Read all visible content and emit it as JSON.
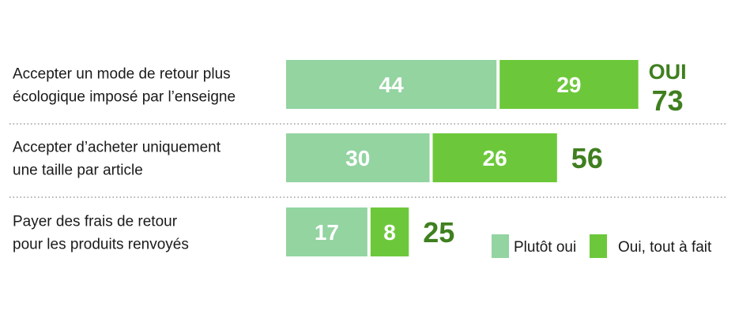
{
  "chart_data": {
    "type": "bar",
    "orientation": "horizontal",
    "stacked": true,
    "categories": [
      [
        "Accepter un mode de retour plus",
        "écologique imposé par l’enseigne"
      ],
      [
        "Accepter d’acheter uniquement",
        "une taille par article"
      ],
      [
        "Payer des frais de retour",
        "pour les produits renvoyés"
      ]
    ],
    "series": [
      {
        "name": "Plutôt oui",
        "values": [
          44,
          30,
          17
        ],
        "color": "#93d4a1"
      },
      {
        "name": "Oui, tout à fait",
        "values": [
          29,
          26,
          8
        ],
        "color": "#6cc83a"
      }
    ],
    "totals": [
      73,
      56,
      25
    ],
    "total_prefix": "OUI",
    "total_color": "#3f7f1f",
    "separator": "dotted",
    "legend_position": "bottom-right"
  }
}
